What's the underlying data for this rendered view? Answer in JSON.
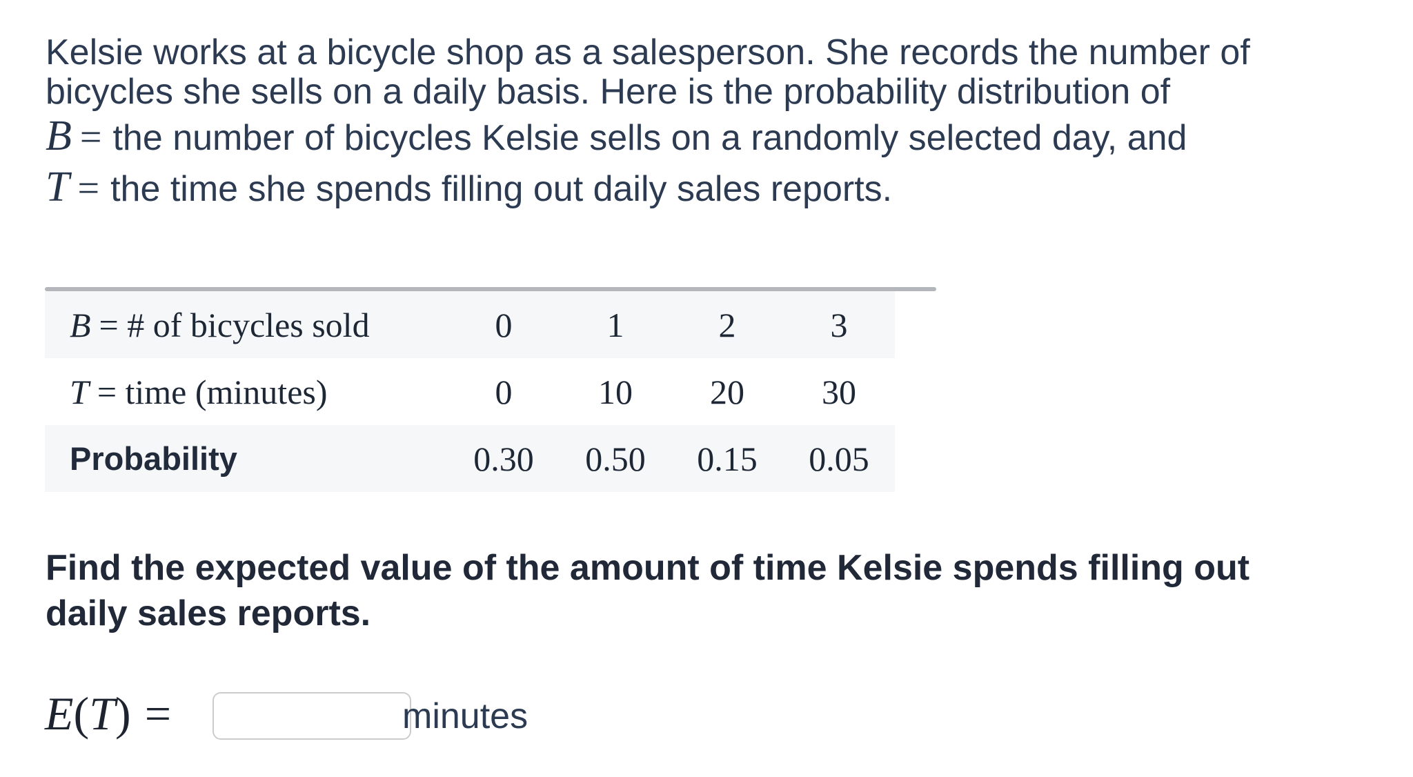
{
  "intro": {
    "line1": "Kelsie works at a bicycle shop as a salesperson. She records the number of",
    "line2": "bicycles she sells on a daily basis. Here is the probability distribution of",
    "line3": {
      "variable": "B",
      "equals": "=",
      "text": "the number of bicycles Kelsie sells on a randomly selected day, and"
    },
    "line4": {
      "variable": "T",
      "equals": "=",
      "text": "the time she spends filling out daily sales reports."
    }
  },
  "table": {
    "row_bicycles": {
      "variable": "B",
      "label_rest": "= # of bicycles sold",
      "values": [
        "0",
        "1",
        "2",
        "3"
      ]
    },
    "row_time": {
      "variable": "T",
      "label_rest": "= time (minutes)",
      "values": [
        "0",
        "10",
        "20",
        "30"
      ]
    },
    "row_probability": {
      "label": "Probability",
      "values": [
        "0.30",
        "0.50",
        "0.15",
        "0.05"
      ]
    }
  },
  "question": {
    "line1": "Find the expected value of the amount of time Kelsie spends filling out",
    "line2": "daily sales reports."
  },
  "answer": {
    "expression": {
      "e_var": "E",
      "open_paren": "(",
      "t_var": "T",
      "close_paren": ")",
      "equals": "="
    },
    "input_value": "",
    "unit": "minutes"
  },
  "colors": {
    "paragraph_text": "#2c3b52",
    "heading_text": "#212938",
    "table_text": "#1e2735",
    "table_row_shaded": "#f6f7f8",
    "table_top_rule": "#b3b6ba",
    "input_border": "#cccccc",
    "background": "#ffffff"
  }
}
